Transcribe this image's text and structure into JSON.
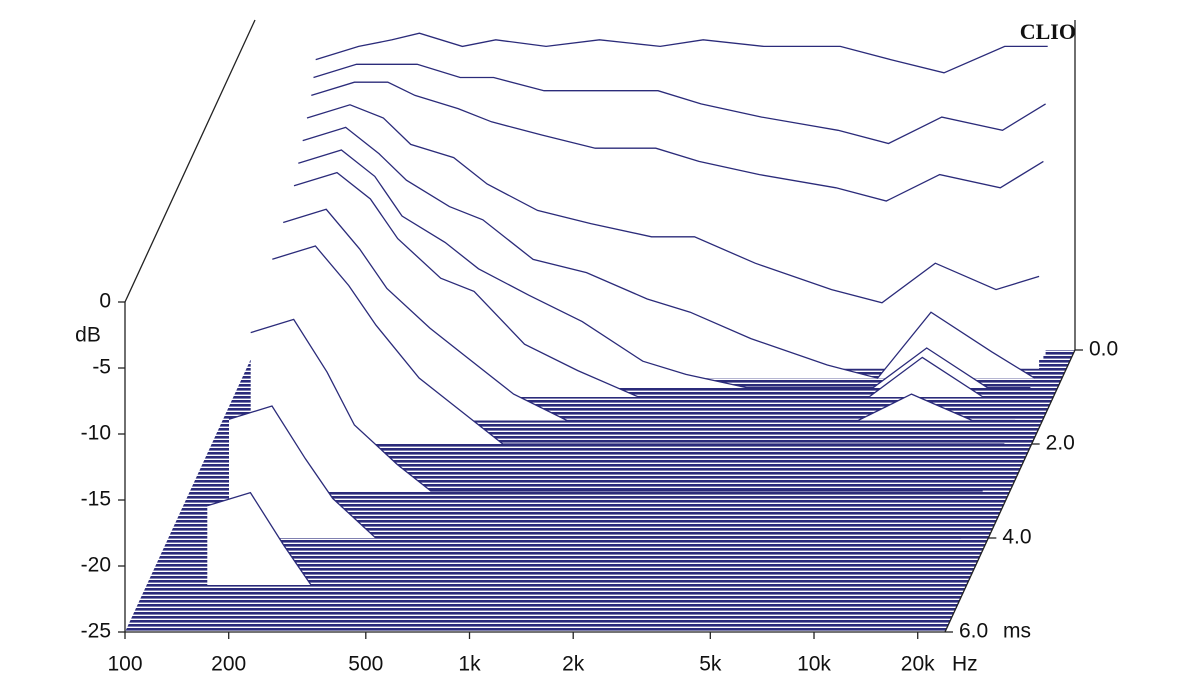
{
  "chart_data": {
    "type": "waterfall",
    "brand": "CLIO",
    "y_label": "dB",
    "x_unit": "Hz",
    "t_unit": "ms",
    "color": "#2b2b7a",
    "xlim": [
      100,
      24000
    ],
    "xlog": true,
    "xticks": [
      100,
      200,
      500,
      {
        "value": 1000,
        "label": "1k"
      },
      {
        "value": 2000,
        "label": "2k"
      },
      {
        "value": 5000,
        "label": "5k"
      },
      {
        "value": 10000,
        "label": "10k"
      },
      {
        "value": 20000,
        "label": "20k"
      }
    ],
    "ylim": [
      -25,
      0
    ],
    "yticks": [
      -25,
      -20,
      -15,
      -10,
      -5,
      0
    ],
    "tlim": [
      0,
      6
    ],
    "tticks": [
      {
        "value": 0,
        "label": "0.0"
      },
      {
        "value": 2,
        "label": "2.0"
      },
      {
        "value": 4,
        "label": "4.0"
      },
      {
        "value": 6,
        "label": "6.0"
      }
    ],
    "x": [
      150,
      200,
      250,
      300,
      400,
      500,
      700,
      1000,
      1500,
      2000,
      3000,
      5000,
      7000,
      10000,
      15000,
      20000
    ],
    "series": [
      {
        "t": 0,
        "values": [
          -3,
          -2,
          -1.5,
          -1,
          -2,
          -1.5,
          -2,
          -1.5,
          -2,
          -1.5,
          -2,
          -2,
          -3,
          -4,
          -2,
          -2
        ]
      },
      {
        "t": 0.1,
        "values": [
          -4,
          -3,
          -3,
          -3,
          -4,
          -4,
          -5,
          -5,
          -5,
          -6,
          -7,
          -8,
          -9,
          -7,
          -8,
          -6
        ]
      },
      {
        "t": 0.2,
        "values": [
          -5,
          -4,
          -4,
          -5,
          -6,
          -7,
          -8,
          -9,
          -9,
          -10,
          -11,
          -12,
          -13,
          -11,
          -12,
          -10
        ]
      },
      {
        "t": 0.4,
        "values": [
          -6,
          -5,
          -6,
          -8,
          -9,
          -11,
          -13,
          -14,
          -15,
          -15,
          -17,
          -19,
          -20,
          -17,
          -19,
          -18
        ]
      },
      {
        "t": 0.6,
        "values": [
          -7,
          -6,
          -8,
          -10,
          -12,
          -13,
          -16,
          -17,
          -19,
          -20,
          -22,
          -24,
          -25,
          -20,
          -23,
          -25
        ]
      },
      {
        "t": 0.8,
        "values": [
          -8,
          -7,
          -9,
          -12,
          -14,
          -16,
          -18,
          -20,
          -23,
          -24,
          -25,
          -25,
          -25,
          -22,
          -25,
          -25
        ]
      },
      {
        "t": 1.0,
        "values": [
          -9,
          -8,
          -10,
          -13,
          -16,
          -17,
          -21,
          -23,
          -25,
          -25,
          -25,
          -25,
          -25,
          -22,
          -25,
          -25
        ]
      },
      {
        "t": 1.5,
        "values": [
          -10,
          -9,
          -12,
          -15,
          -18,
          -20,
          -23,
          -25,
          -25,
          -25,
          -25,
          -25,
          -25,
          -23,
          -25,
          -25
        ]
      },
      {
        "t": 2.0,
        "values": [
          -11,
          -10,
          -13,
          -16,
          -20,
          -22,
          -25,
          -25,
          -25,
          -25,
          -25,
          -25,
          -25,
          -25,
          -25,
          -25
        ]
      },
      {
        "t": 3.0,
        "values": [
          -13,
          -12,
          -16,
          -20,
          -23,
          -25,
          -25,
          -25,
          -25,
          -25,
          -25,
          -25,
          -25,
          -25,
          -25,
          -25
        ]
      },
      {
        "t": 4.0,
        "values": [
          -16,
          -15,
          -19,
          -22,
          -25,
          -25,
          -25,
          -25,
          -25,
          -25,
          -25,
          -25,
          -25,
          -25,
          -25,
          -25
        ]
      },
      {
        "t": 5.0,
        "values": [
          -19,
          -18,
          -22,
          -25,
          -25,
          -25,
          -25,
          -25,
          -25,
          -25,
          -25,
          -25,
          -25,
          -25,
          -25,
          -25
        ]
      }
    ]
  }
}
